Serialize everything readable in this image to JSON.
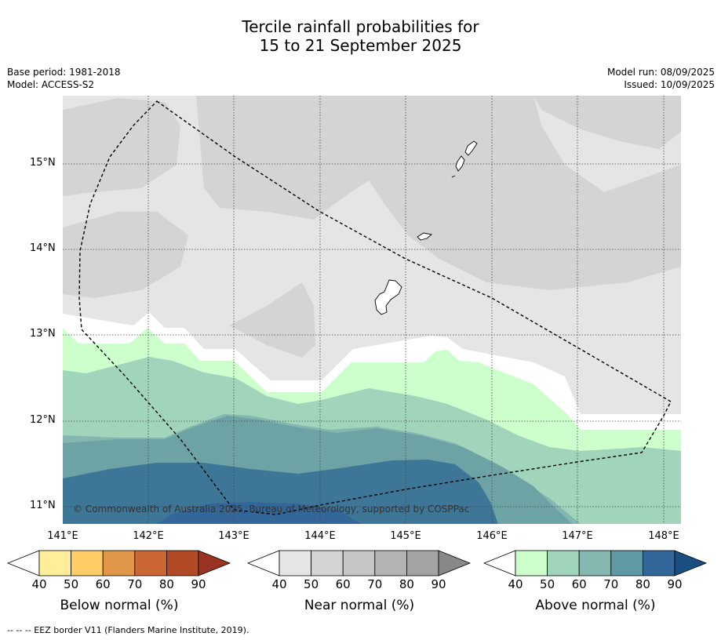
{
  "title_line1": "Tercile rainfall probabilities for",
  "title_line2": "15 to 21 September 2025",
  "base_period": "Base period: 1981-2018",
  "model": "Model: ACCESS-S2",
  "model_run": "Model run: 08/09/2025",
  "issued": "Issued: 10/09/2025",
  "lat_labels": [
    "15°N",
    "14°N",
    "13°N",
    "12°N",
    "11°N"
  ],
  "lon_labels": [
    "141°E",
    "142°E",
    "143°E",
    "144°E",
    "145°E",
    "146°E",
    "147°E",
    "148°E"
  ],
  "copyright": "© Commonwealth of Australia 2025, Bureau of Meteorology, supported by COSPPac",
  "footnote": "-- -- -- EEZ border V11 (Flanders Marine Institute, 2019).",
  "colorbars": {
    "below": {
      "title": "Below normal (%)",
      "ticks": [
        "40",
        "50",
        "60",
        "70",
        "80",
        "90"
      ],
      "colors": [
        "#ffee99",
        "#ffcc66",
        "#e09848",
        "#cc6633",
        "#b34a26",
        "#993322"
      ]
    },
    "near": {
      "title": "Near normal (%)",
      "ticks": [
        "40",
        "50",
        "60",
        "70",
        "80",
        "90"
      ],
      "colors": [
        "#e5e5e5",
        "#d4d4d4",
        "#c6c6c6",
        "#b3b3b3",
        "#a3a3a3",
        "#888888"
      ]
    },
    "above": {
      "title": "Above normal (%)",
      "ticks": [
        "40",
        "50",
        "60",
        "70",
        "80",
        "90"
      ],
      "colors": [
        "#ccffcc",
        "#a0d4bb",
        "#84b7b0",
        "#5f99a4",
        "#336699",
        "#1a4d80"
      ]
    }
  }
}
